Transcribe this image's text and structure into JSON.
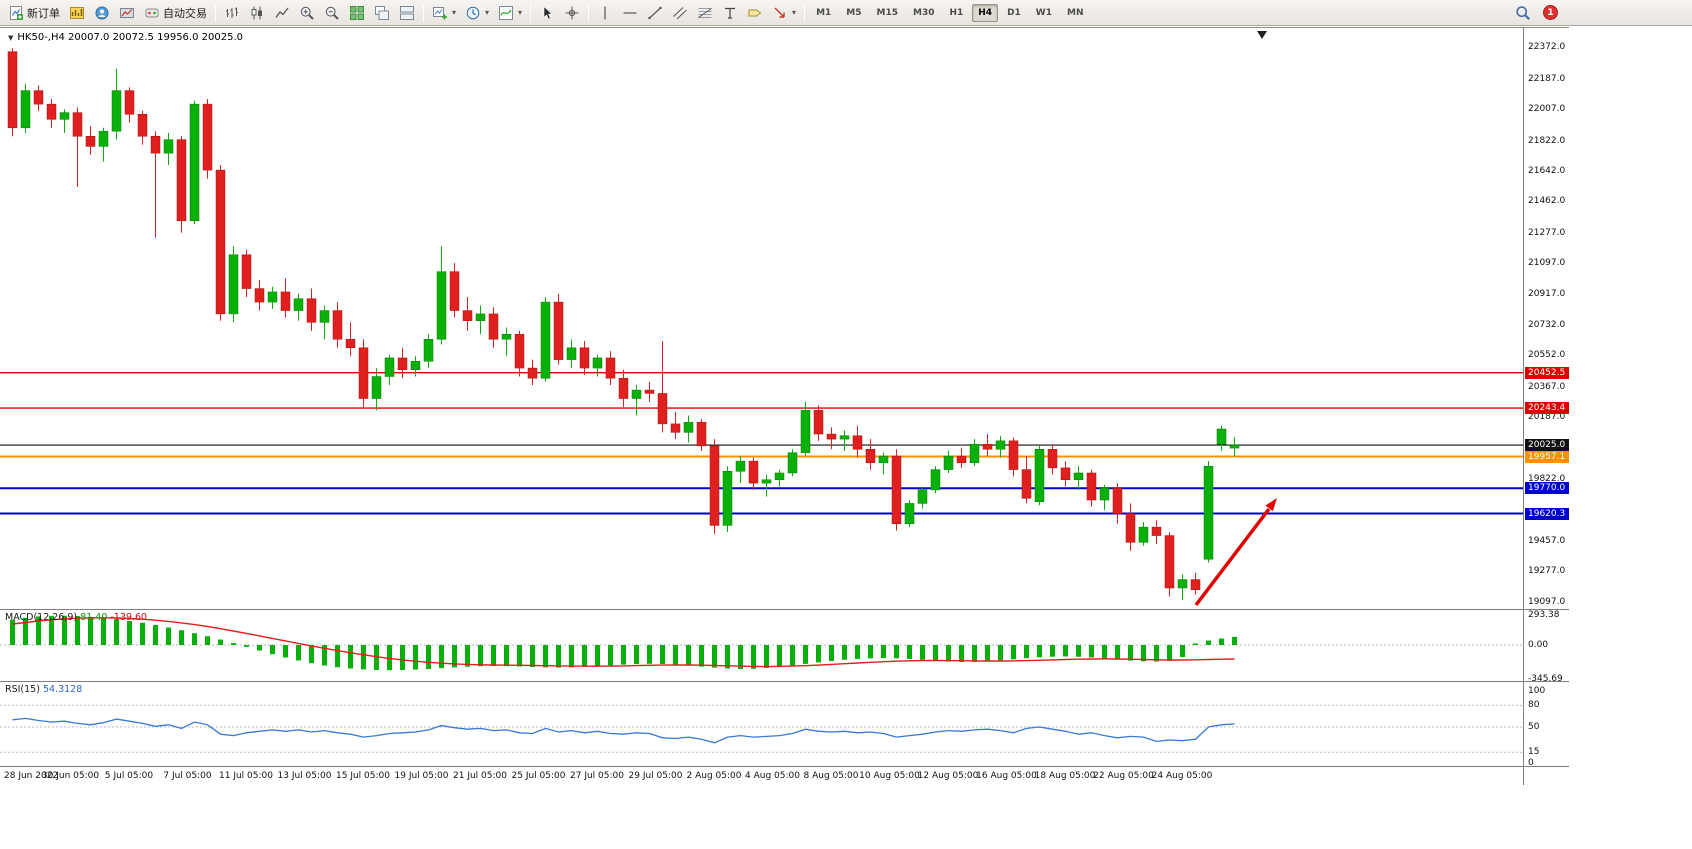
{
  "toolbar": {
    "groups": [
      {
        "type": "labeled",
        "name": "new-order-button",
        "icon": "new-order-icon",
        "label": "新订单"
      },
      {
        "type": "icons",
        "items": [
          "market-watch-icon",
          "navigator-icon",
          "terminal-icon"
        ]
      },
      {
        "type": "labeled",
        "name": "auto-trading-button",
        "icon": "autotrade-icon",
        "label": "自动交易"
      },
      {
        "type": "sep"
      },
      {
        "type": "icons",
        "items": [
          "bar-chart-icon",
          "candlestick-icon",
          "line-chart-icon"
        ]
      },
      {
        "type": "icons",
        "items": [
          "zoom-in-icon",
          "zoom-out-icon"
        ]
      },
      {
        "type": "icons",
        "items": [
          "tile-windows-icon",
          "cascade-icon",
          "arrange-icon"
        ]
      },
      {
        "type": "sep"
      },
      {
        "type": "icons-caret",
        "items": [
          "new-chart-icon",
          "time-icon",
          "indicators-icon"
        ]
      },
      {
        "type": "sep"
      },
      {
        "type": "icons",
        "items": [
          "cursor-icon",
          "crosshair-icon"
        ]
      },
      {
        "type": "sep"
      },
      {
        "type": "icons",
        "items": [
          "vline-icon",
          "hline-icon",
          "trendline-icon",
          "channel-icon",
          "fibo-icon",
          "text-icon",
          "label-icon"
        ]
      },
      {
        "type": "icons-caret",
        "items": [
          "arrows-icon"
        ]
      },
      {
        "type": "sep"
      },
      {
        "type": "timeframes"
      }
    ],
    "timeframes": [
      "M1",
      "M5",
      "M15",
      "M30",
      "H1",
      "H4",
      "D1",
      "W1",
      "MN"
    ],
    "active_timeframe": "H4",
    "right": {
      "search_icon": "search-icon",
      "notification_badge": "1"
    }
  },
  "chart": {
    "caret": "▼",
    "header": "HK50-,H4 20007.0 20072.5 19956.0 20025.0"
  },
  "macd": {
    "name": "MACD(12,26,9)",
    "main_value": "81.40",
    "signal_value": "-139.60",
    "axis_labels": [
      "293.38",
      "0.00",
      "-345.69"
    ]
  },
  "rsi": {
    "name": "RSI(15)",
    "value": "54.3128",
    "axis_labels": [
      "100",
      "80",
      "50",
      "15",
      "0"
    ]
  },
  "chart_data": {
    "type": "candlestick",
    "symbol": "HK50-",
    "timeframe": "H4",
    "current_bar": {
      "open": 20007.0,
      "high": 20072.5,
      "low": 19956.0,
      "close": 20025.0
    },
    "price_axis_ticks": [
      22372,
      22187,
      22007,
      21822,
      21642,
      21462,
      21277,
      21097,
      20917,
      20732,
      20552,
      20367,
      20187,
      19822,
      19457,
      19277,
      19097
    ],
    "horizontal_lines": [
      {
        "price": 20452.5,
        "color": "#dd0000",
        "width": 1.4
      },
      {
        "price": 20243.4,
        "color": "#dd0000",
        "width": 1.4
      },
      {
        "price": 20025.0,
        "color": "#111111",
        "width": 1.2
      },
      {
        "price": 19957.1,
        "color": "#ff9000",
        "width": 2
      },
      {
        "price": 19770.0,
        "color": "#0000cc",
        "width": 2
      },
      {
        "price": 19620.3,
        "color": "#0000cc",
        "width": 2
      }
    ],
    "time_labels": [
      "28 Jun 2022",
      "30 Jun 05:00",
      "5 Jul 05:00",
      "7 Jul 05:00",
      "11 Jul 05:00",
      "13 Jul 05:00",
      "15 Jul 05:00",
      "19 Jul 05:00",
      "21 Jul 05:00",
      "25 Jul 05:00",
      "27 Jul 05:00",
      "29 Jul 05:00",
      "2 Aug 05:00",
      "4 Aug 05:00",
      "8 Aug 05:00",
      "10 Aug 05:00",
      "12 Aug 05:00",
      "16 Aug 05:00",
      "18 Aug 05:00",
      "22 Aug 05:00",
      "24 Aug 05:00"
    ],
    "candles": [
      [
        22350,
        22370,
        21850,
        21900
      ],
      [
        21900,
        22160,
        21870,
        22120
      ],
      [
        22120,
        22150,
        22000,
        22040
      ],
      [
        22040,
        22070,
        21900,
        21950
      ],
      [
        21950,
        22010,
        21870,
        21990
      ],
      [
        21990,
        22020,
        21550,
        21850
      ],
      [
        21850,
        21910,
        21740,
        21790
      ],
      [
        21790,
        21900,
        21700,
        21880
      ],
      [
        21880,
        22250,
        21830,
        22120
      ],
      [
        22120,
        22140,
        21930,
        21980
      ],
      [
        21980,
        22000,
        21800,
        21850
      ],
      [
        21850,
        21880,
        21250,
        21750
      ],
      [
        21750,
        21870,
        21680,
        21830
      ],
      [
        21830,
        21850,
        21280,
        21350
      ],
      [
        21350,
        22060,
        21330,
        22040
      ],
      [
        22040,
        22070,
        21600,
        21650
      ],
      [
        21650,
        21680,
        20760,
        20800
      ],
      [
        20800,
        21200,
        20750,
        21150
      ],
      [
        21150,
        21180,
        20900,
        20950
      ],
      [
        20950,
        21000,
        20820,
        20870
      ],
      [
        20870,
        20960,
        20830,
        20930
      ],
      [
        20930,
        21010,
        20780,
        20820
      ],
      [
        20820,
        20920,
        20760,
        20890
      ],
      [
        20890,
        20950,
        20700,
        20750
      ],
      [
        20750,
        20850,
        20650,
        20820
      ],
      [
        20820,
        20870,
        20600,
        20650
      ],
      [
        20650,
        20750,
        20550,
        20600
      ],
      [
        20600,
        20650,
        20240,
        20300
      ],
      [
        20300,
        20480,
        20230,
        20430
      ],
      [
        20430,
        20560,
        20380,
        20540
      ],
      [
        20540,
        20600,
        20420,
        20470
      ],
      [
        20470,
        20550,
        20430,
        20520
      ],
      [
        20520,
        20680,
        20480,
        20650
      ],
      [
        20650,
        21200,
        20620,
        21050
      ],
      [
        21050,
        21100,
        20780,
        20820
      ],
      [
        20820,
        20900,
        20700,
        20760
      ],
      [
        20760,
        20850,
        20680,
        20800
      ],
      [
        20800,
        20840,
        20600,
        20650
      ],
      [
        20650,
        20720,
        20550,
        20680
      ],
      [
        20680,
        20700,
        20430,
        20480
      ],
      [
        20480,
        20530,
        20380,
        20420
      ],
      [
        20420,
        20900,
        20400,
        20870
      ],
      [
        20870,
        20920,
        20500,
        20530
      ],
      [
        20530,
        20650,
        20480,
        20600
      ],
      [
        20600,
        20640,
        20440,
        20480
      ],
      [
        20480,
        20560,
        20430,
        20540
      ],
      [
        20540,
        20580,
        20380,
        20420
      ],
      [
        20420,
        20470,
        20250,
        20300
      ],
      [
        20300,
        20380,
        20200,
        20350
      ],
      [
        20350,
        20400,
        20280,
        20330
      ],
      [
        20330,
        20640,
        20100,
        20150
      ],
      [
        20150,
        20220,
        20060,
        20100
      ],
      [
        20100,
        20200,
        20040,
        20160
      ],
      [
        20160,
        20180,
        19990,
        20020
      ],
      [
        20020,
        20060,
        19500,
        19550
      ],
      [
        19550,
        19900,
        19510,
        19870
      ],
      [
        19870,
        19960,
        19800,
        19930
      ],
      [
        19930,
        19950,
        19760,
        19800
      ],
      [
        19800,
        19850,
        19720,
        19820
      ],
      [
        19820,
        19880,
        19780,
        19860
      ],
      [
        19860,
        20000,
        19840,
        19980
      ],
      [
        19980,
        20280,
        19960,
        20230
      ],
      [
        20230,
        20260,
        20050,
        20090
      ],
      [
        20090,
        20130,
        20000,
        20060
      ],
      [
        20060,
        20110,
        19990,
        20080
      ],
      [
        20080,
        20140,
        19950,
        20000
      ],
      [
        20000,
        20060,
        19880,
        19920
      ],
      [
        19920,
        19980,
        19850,
        19960
      ],
      [
        19960,
        20000,
        19520,
        19560
      ],
      [
        19560,
        19700,
        19540,
        19680
      ],
      [
        19680,
        19780,
        19650,
        19760
      ],
      [
        19760,
        19900,
        19740,
        19880
      ],
      [
        19880,
        19990,
        19860,
        19960
      ],
      [
        19960,
        20010,
        19890,
        19920
      ],
      [
        19920,
        20060,
        19900,
        20030
      ],
      [
        20030,
        20090,
        19960,
        20000
      ],
      [
        20000,
        20080,
        19950,
        20050
      ],
      [
        20050,
        20070,
        19840,
        19880
      ],
      [
        19880,
        19960,
        19680,
        19710
      ],
      [
        19690,
        20020,
        19670,
        20000
      ],
      [
        20000,
        20030,
        19850,
        19890
      ],
      [
        19890,
        19930,
        19780,
        19820
      ],
      [
        19820,
        19900,
        19760,
        19860
      ],
      [
        19860,
        19880,
        19660,
        19700
      ],
      [
        19700,
        19790,
        19640,
        19770
      ],
      [
        19770,
        19800,
        19560,
        19620
      ],
      [
        19620,
        19680,
        19400,
        19450
      ],
      [
        19450,
        19570,
        19430,
        19540
      ],
      [
        19540,
        19580,
        19440,
        19490
      ],
      [
        19490,
        19510,
        19130,
        19180
      ],
      [
        19180,
        19260,
        19110,
        19230
      ],
      [
        19230,
        19270,
        19140,
        19170
      ],
      [
        19350,
        19930,
        19330,
        19900
      ],
      [
        20030,
        20140,
        19990,
        20120
      ],
      [
        20007,
        20072.5,
        19956,
        20025
      ]
    ],
    "macd": {
      "histogram": [
        250,
        272,
        286,
        292,
        293,
        289,
        281,
        270,
        256,
        240,
        222,
        200,
        175,
        148,
        118,
        88,
        55,
        20,
        -18,
        -55,
        -92,
        -125,
        -155,
        -182,
        -205,
        -222,
        -235,
        -244,
        -250,
        -252,
        -250,
        -246,
        -240,
        -232,
        -224,
        -217,
        -212,
        -210,
        -211,
        -215,
        -220,
        -224,
        -226,
        -224,
        -219,
        -212,
        -204,
        -196,
        -190,
        -188,
        -190,
        -196,
        -205,
        -215,
        -226,
        -235,
        -240,
        -238,
        -230,
        -218,
        -204,
        -189,
        -174,
        -160,
        -148,
        -139,
        -133,
        -131,
        -133,
        -139,
        -148,
        -158,
        -166,
        -170,
        -169,
        -163,
        -154,
        -143,
        -132,
        -123,
        -117,
        -115,
        -118,
        -125,
        -135,
        -146,
        -156,
        -163,
        -165,
        -158,
        -120,
        15,
        45,
        65,
        81.4
      ],
      "signal": [
        210,
        225,
        240,
        252,
        262,
        268,
        272,
        272,
        270,
        265,
        258,
        248,
        236,
        221,
        204,
        185,
        163,
        140,
        116,
        91,
        66,
        41,
        16,
        -9,
        -33,
        -56,
        -78,
        -98,
        -117,
        -134,
        -149,
        -162,
        -173,
        -182,
        -189,
        -194,
        -198,
        -200,
        -202,
        -203,
        -205,
        -207,
        -209,
        -211,
        -212,
        -212,
        -211,
        -209,
        -206,
        -203,
        -201,
        -200,
        -200,
        -202,
        -205,
        -208,
        -211,
        -214,
        -215,
        -214,
        -211,
        -207,
        -201,
        -194,
        -187,
        -180,
        -173,
        -167,
        -162,
        -158,
        -156,
        -155,
        -156,
        -157,
        -159,
        -160,
        -160,
        -159,
        -156,
        -153,
        -149,
        -145,
        -142,
        -140,
        -139,
        -140,
        -142,
        -145,
        -148,
        -150,
        -150,
        -148,
        -145,
        -142,
        -139.6
      ],
      "axis_ticks": [
        293.38,
        0,
        -345.69
      ]
    },
    "rsi": {
      "values": [
        60,
        62,
        59,
        57,
        58,
        55,
        53,
        56,
        61,
        58,
        55,
        51,
        53,
        48,
        57,
        53,
        40,
        38,
        42,
        44,
        46,
        44,
        46,
        43,
        45,
        42,
        40,
        36,
        38,
        41,
        42,
        43,
        46,
        52,
        49,
        47,
        48,
        45,
        46,
        42,
        41,
        48,
        43,
        45,
        42,
        44,
        41,
        40,
        42,
        41,
        35,
        34,
        36,
        33,
        28,
        36,
        38,
        36,
        37,
        38,
        41,
        47,
        44,
        43,
        44,
        42,
        43,
        41,
        36,
        38,
        40,
        43,
        45,
        44,
        46,
        47,
        45,
        42,
        48,
        50,
        47,
        44,
        40,
        42,
        38,
        35,
        37,
        36,
        30,
        32,
        31,
        33,
        50,
        53,
        54.31
      ],
      "levels": [
        100,
        80,
        50,
        15,
        0
      ],
      "grid_levels": [
        80,
        50,
        15
      ]
    },
    "annotations": {
      "trend_arrow": {
        "color": "#e00000",
        "direction": "up-right"
      }
    }
  }
}
